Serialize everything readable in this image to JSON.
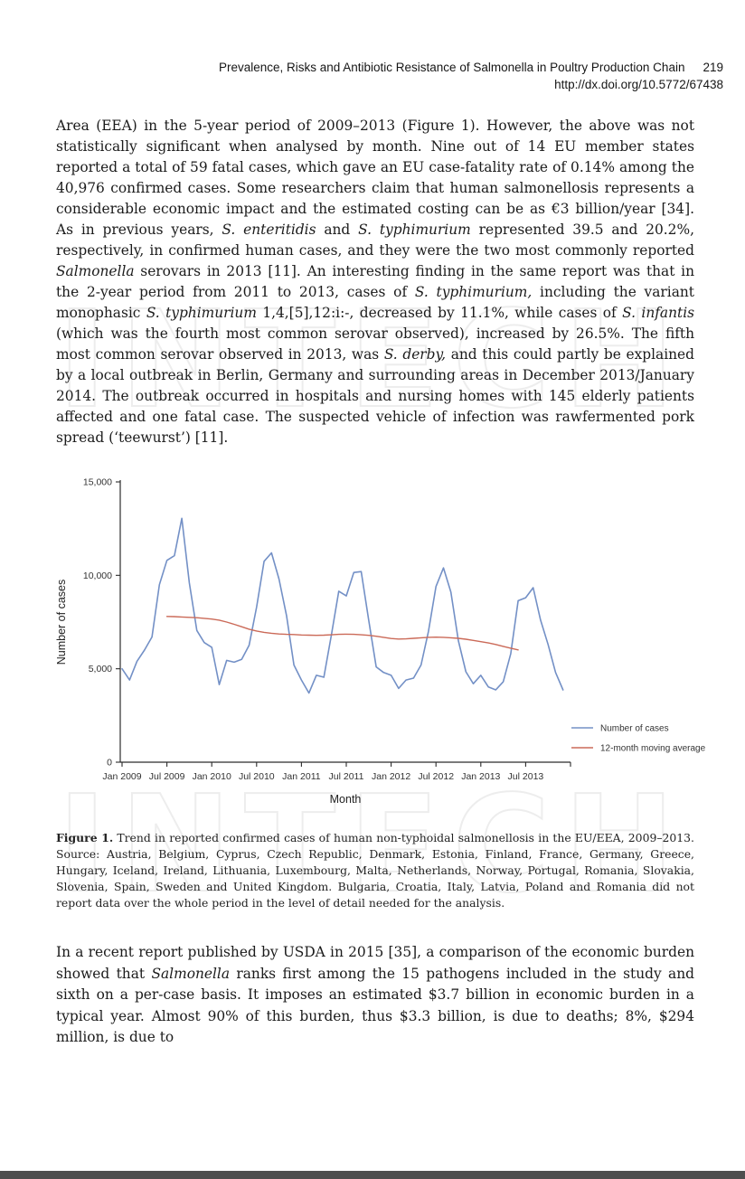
{
  "header": {
    "title": "Prevalence, Risks and Antibiotic Resistance of Salmonella in Poultry Production Chain",
    "page_number": "219",
    "doi": "http://dx.doi.org/10.5772/67438"
  },
  "para1": {
    "segments": [
      {
        "t": "Area (EEA) in the 5-year period of 2009–2013 (Figure 1). However, the above was not statistically significant when analysed by month. Nine out of 14 EU member states reported a total of 59 fatal cases, which gave an EU case-fatality rate of 0.14% among the 40,976 confirmed cases. Some researchers claim that human salmonellosis represents a considerable economic impact and the estimated costing can be as €3 billion/year [34]. As in previous years, "
      },
      {
        "t": "S. enteritidis",
        "i": true
      },
      {
        "t": " and "
      },
      {
        "t": "S. typhimurium",
        "i": true
      },
      {
        "t": " represented 39.5 and 20.2%, respectively, in confirmed human cases, and they were the two most commonly reported "
      },
      {
        "t": "Salmonella",
        "i": true
      },
      {
        "t": " serovars in 2013 [11]. An interesting finding in the same report was that in the 2-year period from 2011 to 2013, cases of "
      },
      {
        "t": "S. typhimurium,",
        "i": true
      },
      {
        "t": " including the variant monophasic "
      },
      {
        "t": "S. typhimurium",
        "i": true
      },
      {
        "t": " 1,4,[5],12:i:-, decreased by 11.1%, while cases of "
      },
      {
        "t": "S. infantis",
        "i": true
      },
      {
        "t": " (which was the fourth most common serovar observed), increased by 26.5%. The fifth most common serovar observed in 2013, was "
      },
      {
        "t": "S. derby,",
        "i": true
      },
      {
        "t": " and this could partly be explained by a local outbreak in Berlin, Germany and surrounding areas in December 2013/January 2014. The outbreak occurred in hospitals and nursing homes with 145 elderly patients affected and one fatal case. The suspected vehicle of infection was rawfermented pork spread (‘teewurst’) [11]."
      }
    ]
  },
  "caption": {
    "segments": [
      {
        "t": "Figure 1.",
        "b": true
      },
      {
        "t": " Trend in reported confirmed cases of human non-typhoidal salmonellosis in the EU/EEA, 2009–2013. Source: Austria, Belgium, Cyprus, Czech Republic, Denmark, Estonia, Finland, France, Germany, Greece, Hungary, Iceland, Ireland, Lithuania, Luxembourg, Malta, Netherlands, Norway, Portugal, Romania, Slovakia, Slovenia, Spain, Sweden and United Kingdom. Bulgaria, Croatia, Italy, Latvia, Poland and Romania did not report data over the whole period in the level of detail needed for the analysis."
      }
    ]
  },
  "para2": {
    "segments": [
      {
        "t": "In a recent report published by USDA in 2015 [35], a comparison of the economic burden showed that "
      },
      {
        "t": "Salmonella",
        "i": true
      },
      {
        "t": " ranks first among the 15 pathogens included in the study and sixth on a per-case basis. It imposes an estimated $3.7 billion in economic burden in a typical year. Almost 90% of this burden, thus $3.3 billion, is due to deaths; 8%, $294 million, is due to"
      }
    ]
  },
  "watermark": {
    "text": "INTECH"
  },
  "chart_data": {
    "type": "line",
    "title": "",
    "xlabel": "Month",
    "ylabel": "Number of cases",
    "ylim": [
      0,
      15000
    ],
    "grid": false,
    "legend_position": "right-lower",
    "x_unit": "month",
    "x_start": "Jan 2009",
    "x_end": "Dec 2013",
    "x_tick_labels": [
      "Jan 2009",
      "Jul 2009",
      "Jan 2010",
      "Jul 2010",
      "Jan 2011",
      "Jul 2011",
      "Jan 2012",
      "Jul 2012",
      "Jan 2013",
      "Jul 2013"
    ],
    "y_tick_labels": [
      "0",
      "5,000",
      "10,000",
      "15,000"
    ],
    "y_tick_values": [
      0,
      5000,
      10000,
      15000
    ],
    "axis_color": "#2b2b2b",
    "series": [
      {
        "name": "Number of cases",
        "color": "#7390c6",
        "width": 1.6,
        "start_month_index": 0,
        "values": [
          5000,
          4400,
          5400,
          6000,
          6700,
          9500,
          10800,
          11050,
          13050,
          9600,
          7050,
          6400,
          6150,
          4150,
          5450,
          5350,
          5500,
          6250,
          8300,
          10750,
          11200,
          9800,
          7850,
          5200,
          4400,
          3700,
          4650,
          4550,
          6800,
          9150,
          8900,
          10150,
          10200,
          7600,
          5100,
          4800,
          4650,
          3950,
          4400,
          4500,
          5200,
          7000,
          9400,
          10400,
          9100,
          6500,
          4840,
          4200,
          4650,
          4030,
          3870,
          4300,
          5800,
          8640,
          8800,
          9340,
          7600,
          6300,
          4800,
          3870
        ]
      },
      {
        "name": "12-month moving average",
        "color": "#cb6a58",
        "width": 1.4,
        "start_month_index": 6,
        "values": [
          7800,
          7790,
          7770,
          7750,
          7730,
          7700,
          7660,
          7600,
          7500,
          7380,
          7250,
          7120,
          7020,
          6950,
          6900,
          6860,
          6840,
          6830,
          6810,
          6800,
          6790,
          6800,
          6820,
          6840,
          6850,
          6840,
          6820,
          6790,
          6740,
          6680,
          6620,
          6590,
          6600,
          6630,
          6660,
          6680,
          6690,
          6680,
          6660,
          6630,
          6580,
          6520,
          6450,
          6380,
          6300,
          6200,
          6100,
          6010
        ]
      }
    ]
  }
}
